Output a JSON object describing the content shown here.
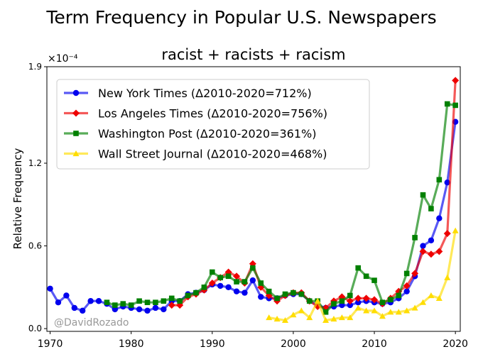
{
  "title": "Term Frequency in Popular U.S. Newspapers",
  "chart_data": {
    "type": "line",
    "subtitle": "racist + racists + racism",
    "ylabel": "Relative Frequency",
    "xlabel": "",
    "scale_label": "×10⁻⁴",
    "xlim": [
      1969.6,
      2020.6
    ],
    "ylim": [
      -0.02,
      1.9
    ],
    "xticks": [
      1970,
      1980,
      1990,
      2000,
      2010,
      2020
    ],
    "yticks": [
      0.0,
      0.6,
      1.2,
      1.9
    ],
    "ytick_labels": [
      "0.0",
      "0.6",
      "1.2",
      "1.9"
    ],
    "watermark": "@DavidRozado",
    "legend_position": "top-left",
    "series": [
      {
        "name": "New York Times (Δ2010-2020=712%)",
        "color": "#0000ee",
        "marker": "circle",
        "x": [
          1970,
          1971,
          1972,
          1973,
          1974,
          1975,
          1976,
          1977,
          1978,
          1979,
          1980,
          1981,
          1982,
          1983,
          1984,
          1985,
          1986,
          1987,
          1988,
          1989,
          1990,
          1991,
          1992,
          1993,
          1994,
          1995,
          1996,
          1997,
          1998,
          1999,
          2000,
          2001,
          2002,
          2003,
          2004,
          2005,
          2006,
          2007,
          2008,
          2009,
          2010,
          2011,
          2012,
          2013,
          2014,
          2015,
          2016,
          2017,
          2018,
          2019,
          2020
        ],
        "y": [
          0.29,
          0.19,
          0.24,
          0.15,
          0.13,
          0.2,
          0.2,
          0.18,
          0.14,
          0.16,
          0.15,
          0.14,
          0.13,
          0.15,
          0.14,
          0.2,
          0.2,
          0.25,
          0.26,
          0.28,
          0.32,
          0.31,
          0.3,
          0.27,
          0.26,
          0.35,
          0.23,
          0.22,
          0.22,
          0.24,
          0.25,
          0.25,
          0.2,
          0.17,
          0.15,
          0.16,
          0.17,
          0.17,
          0.19,
          0.2,
          0.19,
          0.18,
          0.19,
          0.22,
          0.27,
          0.38,
          0.6,
          0.64,
          0.8,
          1.06,
          1.5
        ]
      },
      {
        "name": "Los Angeles Times (Δ2010-2020=756%)",
        "color": "#ee0000",
        "marker": "diamond",
        "x": [
          1985,
          1986,
          1987,
          1988,
          1989,
          1990,
          1991,
          1992,
          1993,
          1994,
          1995,
          1996,
          1997,
          1998,
          1999,
          2000,
          2001,
          2002,
          2003,
          2004,
          2005,
          2006,
          2007,
          2008,
          2009,
          2010,
          2011,
          2012,
          2013,
          2014,
          2015,
          2016,
          2017,
          2018,
          2019,
          2020
        ],
        "y": [
          0.17,
          0.17,
          0.23,
          0.25,
          0.28,
          0.33,
          0.37,
          0.41,
          0.38,
          0.33,
          0.47,
          0.3,
          0.24,
          0.2,
          0.24,
          0.26,
          0.26,
          0.2,
          0.16,
          0.15,
          0.2,
          0.23,
          0.2,
          0.22,
          0.22,
          0.21,
          0.18,
          0.22,
          0.27,
          0.31,
          0.4,
          0.56,
          0.54,
          0.56,
          0.69,
          1.8
        ]
      },
      {
        "name": "Washington Post (Δ2010-2020=361%)",
        "color": "#008000",
        "marker": "square",
        "x": [
          1977,
          1978,
          1979,
          1980,
          1981,
          1982,
          1983,
          1984,
          1985,
          1986,
          1987,
          1988,
          1989,
          1990,
          1991,
          1992,
          1993,
          1994,
          1995,
          1996,
          1997,
          1998,
          1999,
          2000,
          2001,
          2002,
          2003,
          2004,
          2005,
          2006,
          2007,
          2008,
          2009,
          2010,
          2011,
          2012,
          2013,
          2014,
          2015,
          2016,
          2017,
          2018,
          2019,
          2020
        ],
        "y": [
          0.19,
          0.17,
          0.18,
          0.17,
          0.2,
          0.19,
          0.19,
          0.2,
          0.22,
          0.2,
          0.24,
          0.26,
          0.3,
          0.41,
          0.37,
          0.38,
          0.34,
          0.34,
          0.44,
          0.33,
          0.27,
          0.22,
          0.25,
          0.26,
          0.25,
          0.2,
          0.2,
          0.12,
          0.18,
          0.2,
          0.24,
          0.44,
          0.38,
          0.35,
          0.19,
          0.21,
          0.24,
          0.4,
          0.66,
          0.97,
          0.87,
          1.08,
          1.63,
          1.62
        ]
      },
      {
        "name": "Wall Street Journal (Δ2010-2020=468%)",
        "color": "#ffdd00",
        "marker": "triangle",
        "x": [
          1997,
          1998,
          1999,
          2000,
          2001,
          2002,
          2003,
          2004,
          2005,
          2006,
          2007,
          2008,
          2009,
          2010,
          2011,
          2012,
          2013,
          2014,
          2015,
          2016,
          2017,
          2018,
          2019,
          2020
        ],
        "y": [
          0.08,
          0.07,
          0.06,
          0.1,
          0.13,
          0.08,
          0.2,
          0.06,
          0.07,
          0.08,
          0.08,
          0.15,
          0.13,
          0.13,
          0.09,
          0.12,
          0.12,
          0.13,
          0.15,
          0.19,
          0.24,
          0.22,
          0.37,
          0.71
        ]
      }
    ]
  }
}
